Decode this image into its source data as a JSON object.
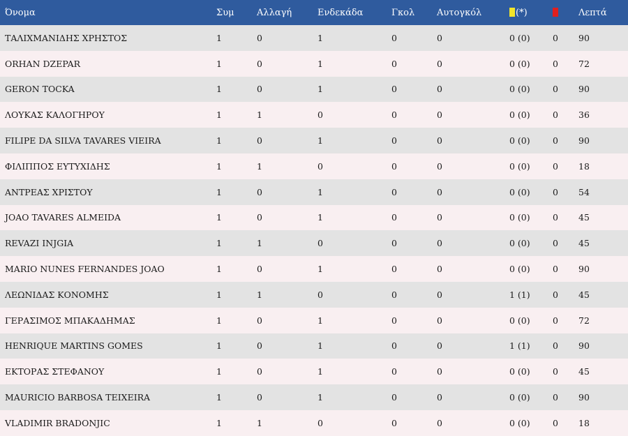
{
  "colors": {
    "header_bg": "#2f5b9e",
    "row_odd": "#e3e3e3",
    "row_even": "#f9eff1",
    "yellow_card": "#f2e52a",
    "red_card": "#e0201f"
  },
  "headers": {
    "name": "Όνομα",
    "apps": "Συμ",
    "sub": "Αλλαγή",
    "starting": "Ενδεκάδα",
    "goals": "Γκολ",
    "own_goals": "Αυτογκόλ",
    "yellow_suffix": "(*)",
    "yellow_icon": "yellow-card-icon",
    "red_icon": "red-card-icon",
    "minutes": "Λεπτά"
  },
  "rows": [
    {
      "name": "ΤΑΛΙΧΜΑΝΙΔΗΣ ΧΡΗΣΤΟΣ",
      "apps": "1",
      "sub": "0",
      "starting": "1",
      "goals": "0",
      "own_goals": "0",
      "yellow": "0 (0)",
      "red": "0",
      "minutes": "90"
    },
    {
      "name": "ORHAN DZEPAR",
      "apps": "1",
      "sub": "0",
      "starting": "1",
      "goals": "0",
      "own_goals": "0",
      "yellow": "0 (0)",
      "red": "0",
      "minutes": "72"
    },
    {
      "name": "GERON TOCKA",
      "apps": "1",
      "sub": "0",
      "starting": "1",
      "goals": "0",
      "own_goals": "0",
      "yellow": "0 (0)",
      "red": "0",
      "minutes": "90"
    },
    {
      "name": "ΛΟΥΚΑΣ ΚΑΛΟΓΗΡΟΥ",
      "apps": "1",
      "sub": "1",
      "starting": "0",
      "goals": "0",
      "own_goals": "0",
      "yellow": "0 (0)",
      "red": "0",
      "minutes": "36"
    },
    {
      "name": "FILIPE DA SILVA TAVARES VIEIRA",
      "apps": "1",
      "sub": "0",
      "starting": "1",
      "goals": "0",
      "own_goals": "0",
      "yellow": "0 (0)",
      "red": "0",
      "minutes": "90"
    },
    {
      "name": "ΦΙΛΙΠΠΟΣ ΕΥΤΥΧΙΔΗΣ",
      "apps": "1",
      "sub": "1",
      "starting": "0",
      "goals": "0",
      "own_goals": "0",
      "yellow": "0 (0)",
      "red": "0",
      "minutes": "18"
    },
    {
      "name": "ΑΝΤΡΕΑΣ ΧΡΙΣΤΟΥ",
      "apps": "1",
      "sub": "0",
      "starting": "1",
      "goals": "0",
      "own_goals": "0",
      "yellow": "0 (0)",
      "red": "0",
      "minutes": "54"
    },
    {
      "name": "JOAO TAVARES ALMEIDA",
      "apps": "1",
      "sub": "0",
      "starting": "1",
      "goals": "0",
      "own_goals": "0",
      "yellow": "0 (0)",
      "red": "0",
      "minutes": "45"
    },
    {
      "name": "REVAZI INJGIA",
      "apps": "1",
      "sub": "1",
      "starting": "0",
      "goals": "0",
      "own_goals": "0",
      "yellow": "0 (0)",
      "red": "0",
      "minutes": "45"
    },
    {
      "name": "MARIO NUNES FERNANDES JOAO",
      "apps": "1",
      "sub": "0",
      "starting": "1",
      "goals": "0",
      "own_goals": "0",
      "yellow": "0 (0)",
      "red": "0",
      "minutes": "90"
    },
    {
      "name": "ΛΕΩΝΙΔΑΣ ΚΟΝΟΜΗΣ",
      "apps": "1",
      "sub": "1",
      "starting": "0",
      "goals": "0",
      "own_goals": "0",
      "yellow": "1 (1)",
      "red": "0",
      "minutes": "45"
    },
    {
      "name": "ΓΕΡΑΣΙΜΟΣ ΜΠΑΚΑΔΗΜΑΣ",
      "apps": "1",
      "sub": "0",
      "starting": "1",
      "goals": "0",
      "own_goals": "0",
      "yellow": "0 (0)",
      "red": "0",
      "minutes": "72"
    },
    {
      "name": "HENRIQUE MARTINS GOMES",
      "apps": "1",
      "sub": "0",
      "starting": "1",
      "goals": "0",
      "own_goals": "0",
      "yellow": "1 (1)",
      "red": "0",
      "minutes": "90"
    },
    {
      "name": "ΕΚΤΟΡΑΣ ΣΤΕΦΑΝΟΥ",
      "apps": "1",
      "sub": "0",
      "starting": "1",
      "goals": "0",
      "own_goals": "0",
      "yellow": "0 (0)",
      "red": "0",
      "minutes": "45"
    },
    {
      "name": "MAURICIO BARBOSA TEIXEIRA",
      "apps": "1",
      "sub": "0",
      "starting": "1",
      "goals": "0",
      "own_goals": "0",
      "yellow": "0 (0)",
      "red": "0",
      "minutes": "90"
    },
    {
      "name": "VLADIMIR BRADONJIC",
      "apps": "1",
      "sub": "1",
      "starting": "0",
      "goals": "0",
      "own_goals": "0",
      "yellow": "0 (0)",
      "red": "0",
      "minutes": "18"
    }
  ]
}
